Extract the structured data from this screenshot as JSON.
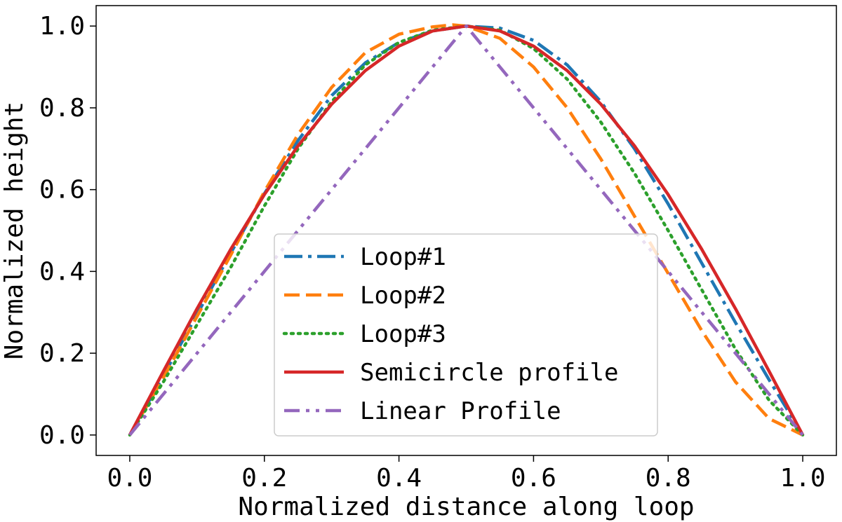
{
  "chart_data": {
    "type": "line",
    "xlabel": "Normalized distance along loop",
    "ylabel": "Normalized height",
    "xlim": [
      -0.05,
      1.05
    ],
    "ylim": [
      -0.05,
      1.05
    ],
    "xticks": [
      0.0,
      0.2,
      0.4,
      0.6,
      0.8,
      1.0
    ],
    "yticks": [
      0.0,
      0.2,
      0.4,
      0.6,
      0.8,
      1.0
    ],
    "xtick_labels": [
      "0.0",
      "0.2",
      "0.4",
      "0.6",
      "0.8",
      "1.0"
    ],
    "ytick_labels": [
      "0.0",
      "0.2",
      "0.4",
      "0.6",
      "0.8",
      "1.0"
    ],
    "grid": false,
    "legend_position": "lower center",
    "series": [
      {
        "name": "Loop#1",
        "color": "#1f77b4",
        "style": "dashdot",
        "x": [
          0.0,
          0.05,
          0.1,
          0.15,
          0.2,
          0.25,
          0.3,
          0.35,
          0.4,
          0.45,
          0.5,
          0.55,
          0.6,
          0.65,
          0.7,
          0.75,
          0.8,
          0.85,
          0.9,
          0.95,
          1.0
        ],
        "y": [
          0.0,
          0.145,
          0.295,
          0.445,
          0.59,
          0.72,
          0.83,
          0.91,
          0.96,
          0.988,
          1.0,
          0.995,
          0.965,
          0.905,
          0.815,
          0.7,
          0.565,
          0.42,
          0.275,
          0.135,
          0.0
        ]
      },
      {
        "name": "Loop#2",
        "color": "#ff7f0e",
        "style": "dashed",
        "x": [
          0.0,
          0.05,
          0.1,
          0.15,
          0.2,
          0.25,
          0.3,
          0.35,
          0.4,
          0.45,
          0.48,
          0.5,
          0.55,
          0.6,
          0.65,
          0.7,
          0.75,
          0.8,
          0.85,
          0.9,
          0.95,
          1.0
        ],
        "y": [
          0.0,
          0.14,
          0.29,
          0.44,
          0.595,
          0.735,
          0.85,
          0.935,
          0.98,
          0.998,
          1.003,
          1.0,
          0.97,
          0.9,
          0.8,
          0.675,
          0.535,
          0.395,
          0.255,
          0.13,
          0.04,
          0.0
        ]
      },
      {
        "name": "Loop#3",
        "color": "#2ca02c",
        "style": "dotted",
        "x": [
          0.0,
          0.05,
          0.1,
          0.15,
          0.2,
          0.25,
          0.3,
          0.35,
          0.4,
          0.45,
          0.5,
          0.55,
          0.6,
          0.65,
          0.7,
          0.75,
          0.8,
          0.85,
          0.9,
          0.95,
          1.0
        ],
        "y": [
          0.0,
          0.13,
          0.27,
          0.41,
          0.56,
          0.7,
          0.815,
          0.905,
          0.96,
          0.99,
          1.0,
          0.99,
          0.945,
          0.87,
          0.765,
          0.64,
          0.5,
          0.355,
          0.21,
          0.085,
          0.0
        ]
      },
      {
        "name": "Semicircle profile",
        "color": "#d62728",
        "style": "solid",
        "x": [
          0.0,
          0.05,
          0.1,
          0.15,
          0.2,
          0.25,
          0.3,
          0.35,
          0.4,
          0.45,
          0.5,
          0.55,
          0.6,
          0.65,
          0.7,
          0.75,
          0.8,
          0.85,
          0.9,
          0.95,
          1.0
        ],
        "y": [
          0.0,
          0.156,
          0.309,
          0.454,
          0.588,
          0.707,
          0.809,
          0.891,
          0.951,
          0.988,
          1.0,
          0.988,
          0.951,
          0.891,
          0.809,
          0.707,
          0.588,
          0.454,
          0.309,
          0.156,
          0.0
        ]
      },
      {
        "name": "Linear Profile",
        "color": "#9467bd",
        "style": "dashdotdot",
        "x": [
          0.0,
          0.5,
          1.0
        ],
        "y": [
          0.0,
          1.0,
          0.0
        ]
      }
    ]
  }
}
